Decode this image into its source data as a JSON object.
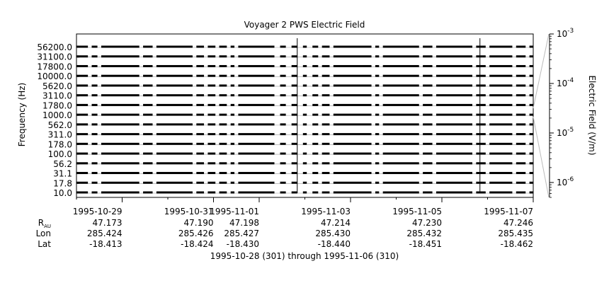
{
  "chart_data": {
    "type": "line",
    "title": "Voyager 2 PWS Electric Field",
    "ylabel": "Frequency (Hz)",
    "colorbar_label": "Electric Field (V/m)",
    "xlabel": "1995-10-28 (301) through 1995-11-06 (310)",
    "x_start": "1995-10-28",
    "x_end": "1995-11-07",
    "x_ticks": [
      {
        "date": "1995-10-29",
        "label": "1995-10-29",
        "R": "47.173",
        "Lon": "285.424",
        "Lat": "-18.413"
      },
      {
        "date": "1995-10-31",
        "label": "1995-10-31",
        "R": "47.190",
        "Lon": "285.426",
        "Lat": "-18.424"
      },
      {
        "date": "1995-11-01",
        "label": "1995-11-01",
        "R": "47.198",
        "Lon": "285.427",
        "Lat": "-18.430"
      },
      {
        "date": "1995-11-03",
        "label": "1995-11-03",
        "R": "47.214",
        "Lon": "285.430",
        "Lat": "-18.440"
      },
      {
        "date": "1995-11-05",
        "label": "1995-11-05",
        "R": "47.230",
        "Lon": "285.432",
        "Lat": "-18.451"
      },
      {
        "date": "1995-11-07",
        "label": "1995-11-07",
        "R": "47.246",
        "Lon": "285.435",
        "Lat": "-18.462"
      }
    ],
    "ephemeris_labels": {
      "R": "R",
      "R_sub": "AU",
      "Lon": "Lon",
      "Lat": "Lat"
    },
    "channels": [
      "56200.0",
      "31100.0",
      "17800.0",
      "10000.0",
      "5620.0",
      "3110.0",
      "1780.0",
      "1000.0",
      "562.0",
      "311.0",
      "178.0",
      "100.0",
      "56.2",
      "31.1",
      "17.8",
      "10.0"
    ],
    "colorbar": {
      "scale": "log",
      "range": [
        5e-07,
        0.001
      ],
      "ticks": [
        {
          "value": 0.001,
          "base": "10",
          "exp": "-3"
        },
        {
          "value": 0.0001,
          "base": "10",
          "exp": "-4"
        },
        {
          "value": 1e-05,
          "base": "10",
          "exp": "-5"
        },
        {
          "value": 1e-06,
          "base": "10",
          "exp": "-6"
        }
      ]
    },
    "data_segments": [
      [
        "1995-10-28T00:00",
        "1995-10-28T06:00"
      ],
      [
        "1995-10-28T08:00",
        "1995-10-28T11:00"
      ],
      [
        "1995-10-28T13:00",
        "1995-10-29T09:00"
      ],
      [
        "1995-10-29T11:00",
        "1995-10-29T16:00"
      ],
      [
        "1995-10-29T18:00",
        "1995-10-30T13:00"
      ],
      [
        "1995-10-30T15:00",
        "1995-10-30T19:00"
      ],
      [
        "1995-10-30T21:00",
        "1995-10-31T01:00"
      ],
      [
        "1995-10-31T03:00",
        "1995-10-31T07:00"
      ],
      [
        "1995-10-31T09:00",
        "1995-10-31T11:00"
      ],
      [
        "1995-10-31T13:00",
        "1995-11-01T08:00"
      ],
      [
        "1995-11-01T11:00",
        "1995-11-01T14:00"
      ],
      [
        "1995-11-01T17:00",
        "1995-11-01T20:00"
      ],
      [
        "1995-11-01T23:00",
        "1995-11-02T01:00"
      ],
      [
        "1995-11-02T04:00",
        "1995-11-02T07:00"
      ],
      [
        "1995-11-02T09:00",
        "1995-11-02T13:00"
      ],
      [
        "1995-11-02T15:00",
        "1995-11-03T11:00"
      ],
      [
        "1995-11-03T13:00",
        "1995-11-03T15:00"
      ],
      [
        "1995-11-03T17:00",
        "1995-11-04T12:00"
      ],
      [
        "1995-11-04T14:00",
        "1995-11-04T19:00"
      ],
      [
        "1995-11-04T21:00",
        "1995-11-05T16:00"
      ],
      [
        "1995-11-05T18:00",
        "1995-11-05T23:00"
      ],
      [
        "1995-11-06T01:00",
        "1995-11-06T13:00"
      ],
      [
        "1995-11-06T15:00",
        "1995-11-06T20:00"
      ],
      [
        "1995-11-06T22:00",
        "1995-11-07T00:00"
      ]
    ],
    "burst_times": [
      "1995-11-01T20:00",
      "1995-11-05T20:00"
    ]
  }
}
